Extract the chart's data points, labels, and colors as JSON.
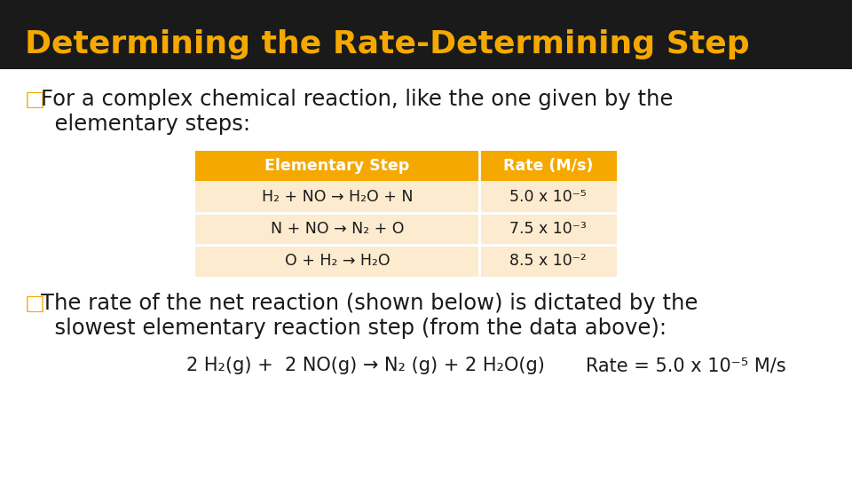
{
  "title": "Determining the Rate-Determining Step",
  "title_color": "#F5A800",
  "title_bg": "#1a1a1a",
  "bg_color": "#FFFFFF",
  "text_color": "#1a1a1a",
  "table_header_bg": "#F5A800",
  "table_header_text": "#FFFFFF",
  "table_row_bg": "#FDEBD0",
  "table_col1_header": "Elementary Step",
  "table_col2_header": "Rate (M/s)",
  "table_rows": [
    [
      "H₂ + NO → H₂O + N",
      "5.0 x 10⁻⁵"
    ],
    [
      "N + NO → N₂ + O",
      "7.5 x 10⁻³"
    ],
    [
      "O + H₂ → H₂O",
      "8.5 x 10⁻²"
    ]
  ],
  "bullet1_line1": "For a complex chemical reaction, like the one given by the",
  "bullet1_line2": "  elementary steps:",
  "bullet2_line1": "The rate of the net reaction (shown below) is dictated by the",
  "bullet2_line2": "  slowest elementary reaction step (from the data above):",
  "eq_left": "2 H₂(g) +  2 NO(g) → N₂ (g) + 2 H₂O(g)",
  "rate_label": "Rate = 5.0 x 10⁻⁵ M/s",
  "title_fontsize": 26,
  "body_fontsize": 17.5,
  "table_fontsize": 12.5
}
